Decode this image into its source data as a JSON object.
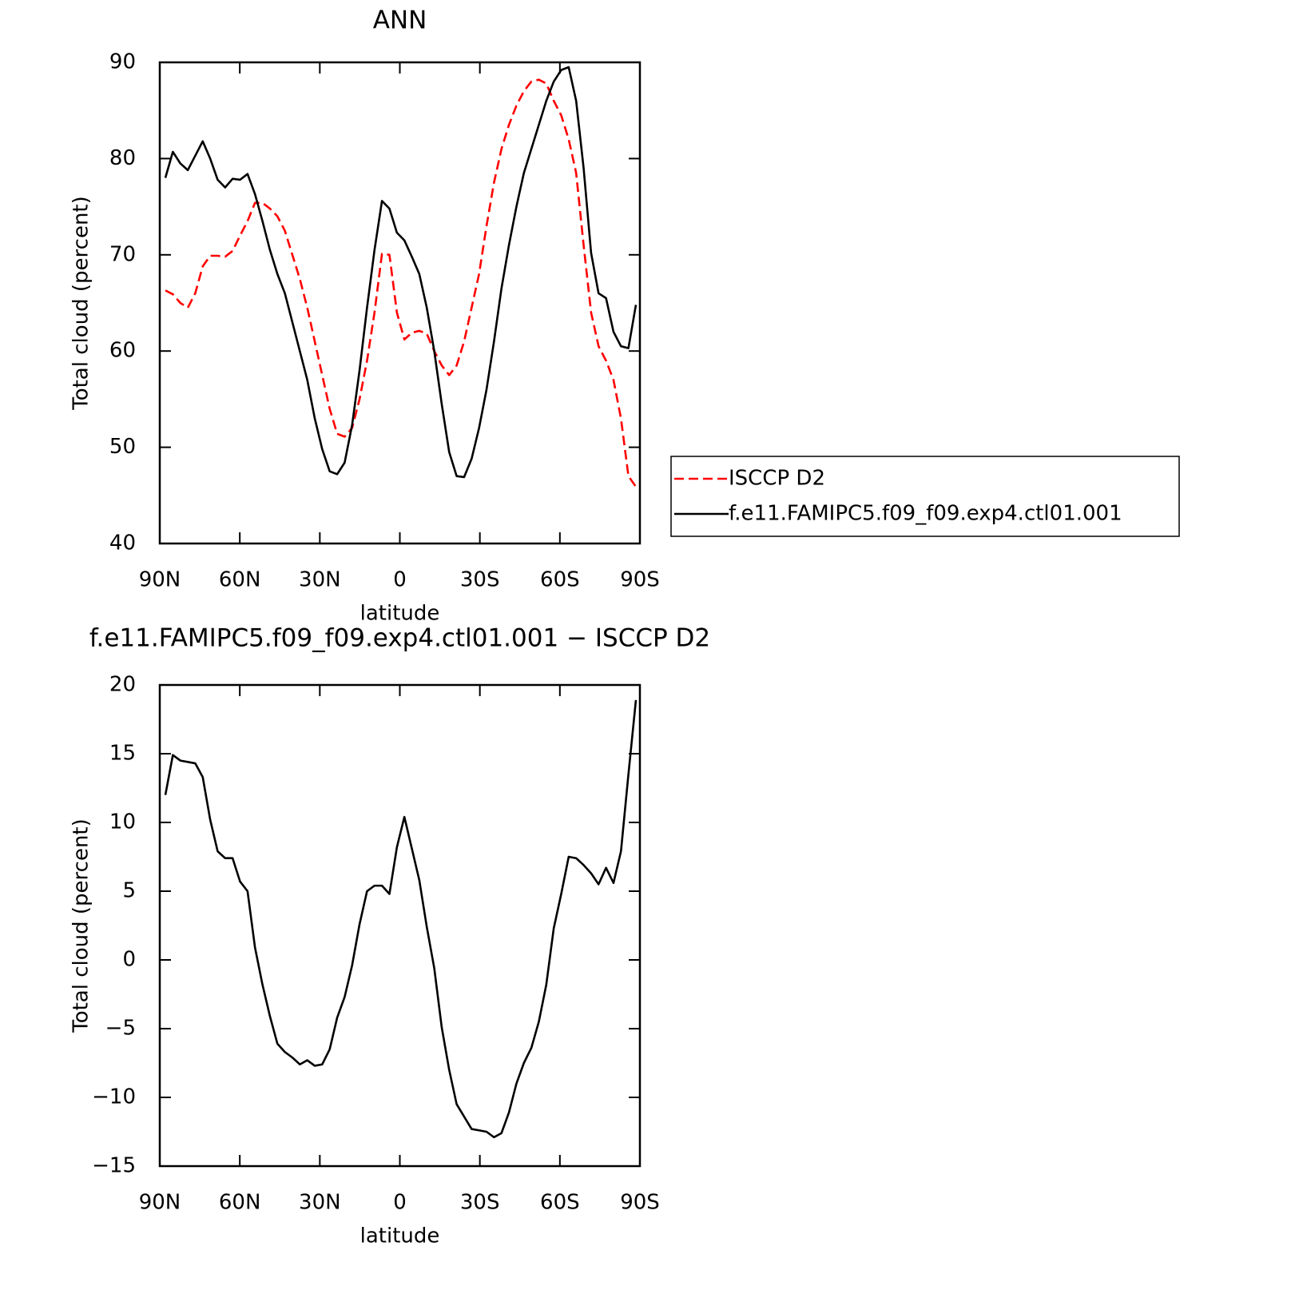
{
  "chart_data": [
    {
      "type": "line",
      "title": "ANN",
      "xlabel": "latitude",
      "ylabel": "Total cloud (percent)",
      "xlim": [
        90,
        -90
      ],
      "ylim": [
        40,
        90
      ],
      "xticks": [
        {
          "value": 90,
          "label": "90N"
        },
        {
          "value": 60,
          "label": "60N"
        },
        {
          "value": 30,
          "label": "30N"
        },
        0,
        {
          "value": -30,
          "label": "30S"
        },
        {
          "value": -60,
          "label": "60S"
        },
        {
          "value": -90,
          "label": "90S"
        }
      ],
      "yticks": [
        40,
        50,
        60,
        70,
        80,
        90
      ],
      "legend": "right",
      "x": [
        87.9,
        85.1,
        82.3,
        79.5,
        76.7,
        73.9,
        71.1,
        68.3,
        65.5,
        62.7,
        59.9,
        57.1,
        54.3,
        51.5,
        48.7,
        45.9,
        43.1,
        40.3,
        37.5,
        34.7,
        31.9,
        29.1,
        26.3,
        23.5,
        20.7,
        17.9,
        15.1,
        12.3,
        9.5,
        6.7,
        3.9,
        1.1,
        -1.7,
        -4.5,
        -7.3,
        -10.1,
        -12.9,
        -15.7,
        -18.5,
        -21.3,
        -24.1,
        -26.9,
        -29.7,
        -32.5,
        -35.3,
        -38.1,
        -40.9,
        -43.7,
        -46.5,
        -49.3,
        -52.1,
        -54.9,
        -57.7,
        -60.5,
        -63.3,
        -66.1,
        -68.9,
        -71.7,
        -74.5,
        -77.3,
        -80.1,
        -82.9,
        -85.7,
        -88.5
      ],
      "series": [
        {
          "name": "ISCCP D2",
          "color": "#ff0000",
          "linestyle": "dashed",
          "values": [
            66.3,
            65.9,
            65,
            64.5,
            66,
            68.8,
            69.9,
            69.9,
            69.8,
            70.4,
            72,
            73.5,
            75.4,
            75.4,
            74.8,
            74,
            72.5,
            70,
            67.5,
            64.5,
            61,
            57.5,
            54,
            51.4,
            51.1,
            52,
            55,
            59,
            64,
            70.1,
            70,
            64,
            61.2,
            61.9,
            62.1,
            61.8,
            60,
            58.5,
            57.5,
            58.5,
            61,
            64.5,
            68,
            73,
            77.5,
            81,
            83.5,
            85.5,
            87,
            88,
            88.2,
            87.8,
            86,
            84.5,
            82,
            78.5,
            71,
            64,
            60.5,
            59,
            57,
            53,
            47,
            45.9
          ]
        },
        {
          "name": "f.e11.FAMIPC5.f09_f09.exp4.ctl01.001",
          "color": "#000000",
          "linestyle": "solid",
          "values": [
            78,
            80.7,
            79.5,
            78.8,
            80.3,
            81.8,
            80,
            77.8,
            77,
            77.9,
            77.8,
            78.4,
            76.3,
            73.5,
            70.5,
            68,
            66,
            63,
            60,
            57,
            53,
            49.8,
            47.5,
            47.2,
            48.4,
            52.3,
            58,
            64.5,
            70.5,
            75.6,
            74.8,
            72.3,
            71.5,
            69.8,
            68,
            64.5,
            60,
            54.5,
            49.5,
            47,
            46.9,
            48.8,
            52,
            56,
            61,
            66.5,
            71,
            75,
            78.5,
            81,
            83.5,
            86,
            88,
            89.2,
            89.5,
            86,
            79,
            70.2,
            66,
            65.5,
            62,
            60.5,
            60.3,
            64.8
          ]
        }
      ]
    },
    {
      "type": "line",
      "title": "f.e11.FAMIPC5.f09_f09.exp4.ctl01.001 − ISCCP D2",
      "xlabel": "latitude",
      "ylabel": "Total cloud (percent)",
      "xlim": [
        90,
        -90
      ],
      "ylim": [
        -15,
        20
      ],
      "xticks": [
        {
          "value": 90,
          "label": "90N"
        },
        {
          "value": 60,
          "label": "60N"
        },
        {
          "value": 30,
          "label": "30N"
        },
        0,
        {
          "value": -30,
          "label": "30S"
        },
        {
          "value": -60,
          "label": "60S"
        },
        {
          "value": -90,
          "label": "90S"
        }
      ],
      "yticks": [
        {
          "value": -15,
          "label": "−15"
        },
        {
          "value": -10,
          "label": "−10"
        },
        {
          "value": -5,
          "label": "−5"
        },
        0,
        5,
        10,
        15,
        20
      ],
      "x": [
        87.9,
        85.1,
        82.3,
        79.5,
        76.7,
        73.9,
        71.1,
        68.3,
        65.5,
        62.7,
        59.9,
        57.1,
        54.3,
        51.5,
        48.7,
        45.9,
        43.1,
        40.3,
        37.5,
        34.7,
        31.9,
        29.1,
        26.3,
        23.5,
        20.7,
        17.9,
        15.1,
        12.3,
        9.5,
        6.7,
        3.9,
        1.1,
        -1.7,
        -4.5,
        -7.3,
        -10.1,
        -12.9,
        -15.7,
        -18.5,
        -21.3,
        -24.1,
        -26.9,
        -29.7,
        -32.5,
        -35.3,
        -38.1,
        -40.9,
        -43.7,
        -46.5,
        -49.3,
        -52.1,
        -54.9,
        -57.7,
        -60.5,
        -63.3,
        -66.1,
        -68.9,
        -71.7,
        -74.5,
        -77.3,
        -80.1,
        -82.9,
        -85.7,
        -88.5
      ],
      "series": [
        {
          "color": "#000000",
          "linestyle": "solid",
          "values": [
            12,
            14.9,
            14.5,
            14.4,
            14.3,
            13.3,
            10.2,
            7.9,
            7.4,
            7.4,
            5.7,
            5,
            0.9,
            -1.8,
            -4.1,
            -6.1,
            -6.7,
            -7.1,
            -7.6,
            -7.3,
            -7.7,
            -7.6,
            -6.5,
            -4.2,
            -2.7,
            -0.4,
            2.6,
            5,
            5.4,
            5.4,
            4.8,
            8.2,
            10.4,
            8.1,
            5.8,
            2.4,
            -0.6,
            -4.9,
            -8,
            -10.5,
            -11.4,
            -12.3,
            -12.4,
            -12.5,
            -12.9,
            -12.6,
            -11.1,
            -9,
            -7.5,
            -6.4,
            -4.5,
            -1.8,
            2.3,
            4.8,
            7.5,
            7.4,
            6.9,
            6.3,
            5.5,
            6.7,
            5.6,
            7.9,
            13.5,
            18.9
          ]
        }
      ]
    }
  ]
}
